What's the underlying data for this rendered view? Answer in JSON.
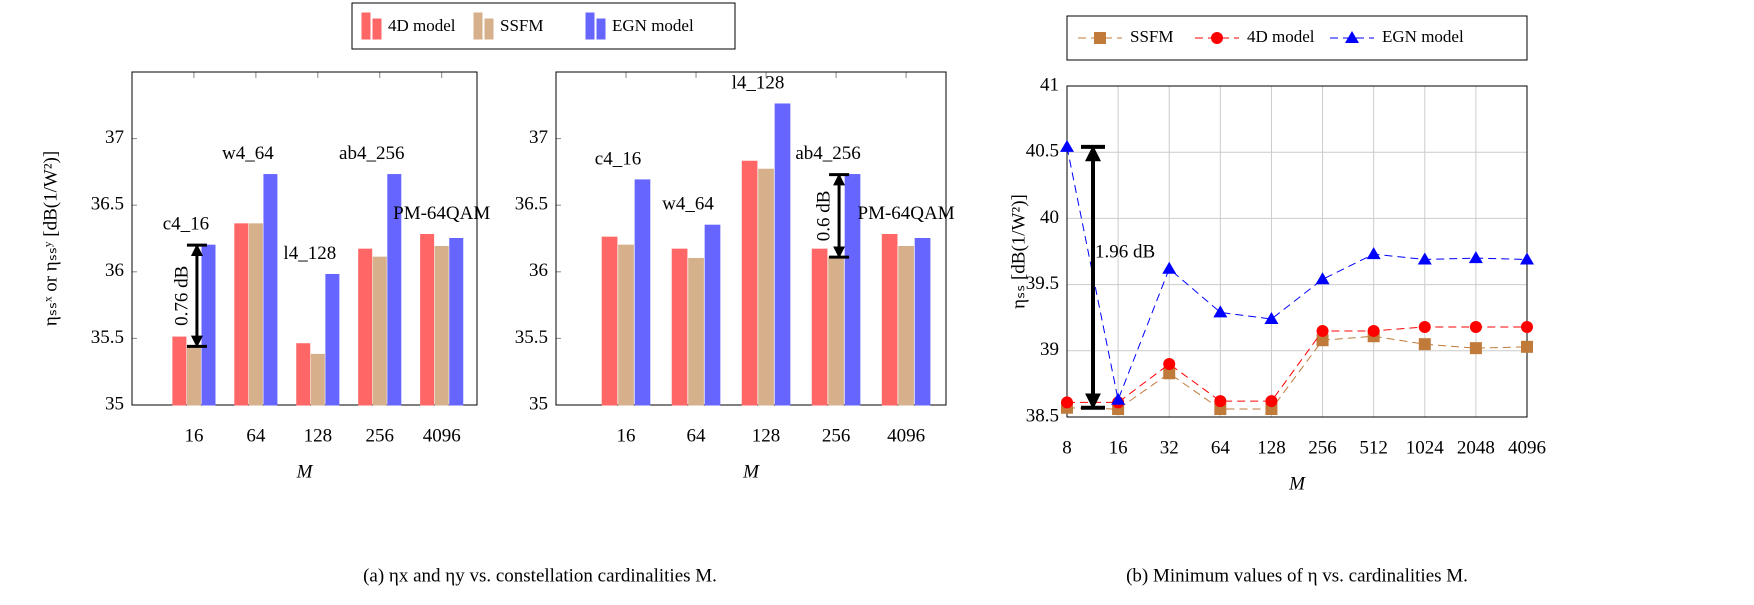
{
  "captions": [
    "(a) ηx and ηy vs. constellation cardinalities M.",
    "(b) Minimum values of η vs. cardinalities M."
  ],
  "chart_data": [
    {
      "type": "bar",
      "ylabel": "ηₛₛˣ or ηₛₛʸ [dB(1/W²)]",
      "xlabel": "M",
      "categories": [
        "16",
        "64",
        "128",
        "256",
        "4096"
      ],
      "series": [
        {
          "name": "4D model",
          "color": "#ff6666",
          "values": [
            35.51,
            36.36,
            35.46,
            36.17,
            36.28
          ]
        },
        {
          "name": "SSFM",
          "color": "#d6b08a",
          "values": [
            35.44,
            36.36,
            35.38,
            36.11,
            36.19
          ]
        },
        {
          "name": "EGN model",
          "color": "#6666ff",
          "values": [
            36.2,
            36.73,
            35.98,
            36.73,
            36.25
          ]
        }
      ],
      "bar_labels": [
        "c4_16",
        "w4_64",
        "l4_128",
        "ab4_256",
        "PM-64QAM"
      ],
      "annotations": [
        "0.76 dB"
      ],
      "ylim": [
        35,
        37.5
      ],
      "yticks": [
        35,
        35.5,
        36,
        36.5,
        37
      ],
      "grid": false
    },
    {
      "type": "bar",
      "xlabel": "M",
      "categories": [
        "16",
        "64",
        "128",
        "256",
        "4096"
      ],
      "series": [
        {
          "color": "#ff6666",
          "values": [
            36.26,
            36.17,
            36.83,
            36.17,
            36.28
          ]
        },
        {
          "color": "#d6b08a",
          "values": [
            36.2,
            36.1,
            36.77,
            36.11,
            36.19
          ]
        },
        {
          "color": "#6666ff",
          "values": [
            36.69,
            36.35,
            37.26,
            36.73,
            36.25
          ]
        }
      ],
      "bar_labels": [
        "c4_16",
        "w4_64",
        "l4_128",
        "ab4_256",
        "PM-64QAM"
      ],
      "annotations": [
        "0.6 dB"
      ],
      "ylim": [
        35,
        37.5
      ],
      "yticks": [
        35,
        35.5,
        36,
        36.5,
        37
      ],
      "grid": false
    },
    {
      "type": "line",
      "ylabel": "ηₛₛ [dB(1/W²)]",
      "xlabel": "M",
      "categories": [
        "8",
        "16",
        "32",
        "64",
        "128",
        "256",
        "512",
        "1024",
        "2048",
        "4096"
      ],
      "series": [
        {
          "name": "SSFM",
          "color": "#c07a3a",
          "marker": "square",
          "values": [
            38.57,
            38.56,
            38.83,
            38.56,
            38.56,
            39.08,
            39.11,
            39.05,
            39.02,
            39.03
          ]
        },
        {
          "name": "4D model",
          "color": "#ff0000",
          "marker": "circle",
          "values": [
            38.61,
            38.61,
            38.9,
            38.62,
            38.62,
            39.15,
            39.15,
            39.18,
            39.18,
            39.18
          ]
        },
        {
          "name": "EGN model",
          "color": "#0000ff",
          "marker": "triangle",
          "values": [
            40.54,
            38.63,
            39.62,
            39.29,
            39.24,
            39.54,
            39.73,
            39.69,
            39.7,
            39.69
          ]
        }
      ],
      "annotations": [
        "1.96 dB"
      ],
      "ylim": [
        38.5,
        41
      ],
      "yticks": [
        38.5,
        39,
        39.5,
        40,
        40.5,
        41
      ],
      "grid": true
    }
  ]
}
